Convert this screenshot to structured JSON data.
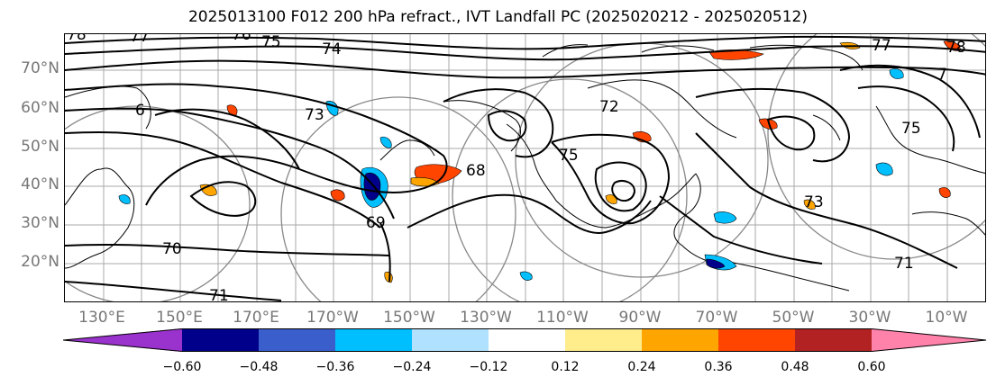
{
  "title": "2025013100 F012 200 hPa refract., IVT Landfall PC (2025020212 - 2025020512)",
  "lat_labels": [
    "70°N",
    "60°N",
    "50°N",
    "40°N",
    "30°N",
    "20°N"
  ],
  "lon_labels": [
    "130°E",
    "150°E",
    "170°E",
    "170°W",
    "150°W",
    "130°W",
    "110°W",
    "90°W",
    "70°W",
    "50°W",
    "30°W",
    "10°W"
  ],
  "contour_labels": [
    "78",
    "77",
    "76",
    "75",
    "74",
    "73",
    "72",
    "71",
    "70",
    "69",
    "68",
    "6",
    "7",
    "78",
    "77",
    "75",
    "75",
    "73",
    "71"
  ],
  "colorbar": {
    "tick_labels": [
      "−0.60",
      "−0.48",
      "−0.36",
      "−0.24",
      "−0.12",
      "0.12",
      "0.24",
      "0.36",
      "0.48",
      "0.60"
    ],
    "colors": [
      "#9a32cd",
      "#00008b",
      "#3a5fcd",
      "#00bfff",
      "#b0e2ff",
      "#ffffff",
      "#ffec8b",
      "#ffa500",
      "#ff4500",
      "#b22222",
      "#ff82ab"
    ]
  }
}
